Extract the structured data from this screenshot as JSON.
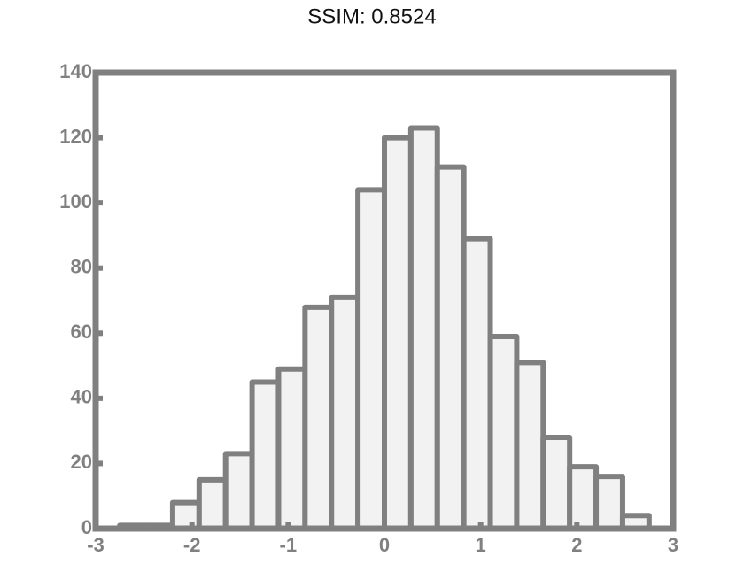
{
  "chart_data": {
    "type": "histogram",
    "title": "SSIM: 0.8524",
    "bins": [
      -2.75,
      -2.475,
      -2.2,
      -1.925,
      -1.65,
      -1.375,
      -1.1,
      -0.825,
      -0.55,
      -0.275,
      0,
      0.275,
      0.55,
      0.825,
      1.1,
      1.375,
      1.65,
      1.925,
      2.2,
      2.475,
      2.75
    ],
    "values": [
      1,
      1,
      8,
      15,
      23,
      45,
      49,
      68,
      71,
      104,
      120,
      123,
      111,
      89,
      59,
      51,
      28,
      19,
      16,
      4
    ],
    "color": "#808080",
    "xlim": [
      -3,
      3
    ],
    "xticks": [
      -3,
      -2,
      -1,
      0,
      1,
      2,
      3
    ],
    "ylim": [
      0,
      140
    ],
    "yticks": [
      0,
      20,
      40,
      60,
      80,
      100,
      120,
      140
    ]
  }
}
